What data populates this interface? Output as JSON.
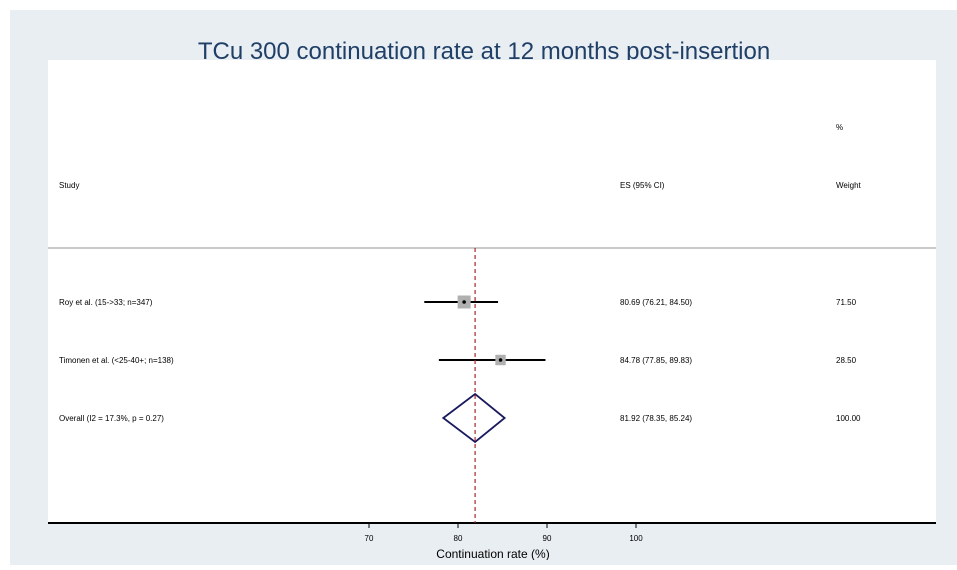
{
  "title": "TCu 300 continuation rate at 12 months post-insertion",
  "chart_data": {
    "type": "forest",
    "title": "TCu 300 continuation rate at 12 months post-insertion",
    "xlabel": "Continuation rate (%)",
    "ticks": [
      70,
      80,
      90,
      100
    ],
    "headers": {
      "study": "Study",
      "es": "ES (95% CI)",
      "weight_top": "%",
      "weight": "Weight"
    },
    "studies": [
      {
        "label": "Roy et al. (15->33; n=347)",
        "es": 80.69,
        "lo": 76.21,
        "hi": 84.5,
        "es_text": "80.69 (76.21, 84.50)",
        "weight": 71.5,
        "weight_text": "71.50"
      },
      {
        "label": "Timonen et al. (<25-40+; n=138)",
        "es": 84.78,
        "lo": 77.85,
        "hi": 89.83,
        "es_text": "84.78 (77.85, 89.83)",
        "weight": 28.5,
        "weight_text": "28.50"
      }
    ],
    "overall": {
      "label": "Overall  (I2 = 17.3%, p = 0.27)",
      "es": 81.92,
      "lo": 78.35,
      "hi": 85.24,
      "es_text": "81.92 (78.35, 85.24)",
      "weight_text": "100.00"
    },
    "colors": {
      "ci": "#000000",
      "box": "#b0b0b0",
      "diamond": "#1a1a5e",
      "refline": "#a52a2a",
      "frame": "#e9eef3"
    }
  }
}
